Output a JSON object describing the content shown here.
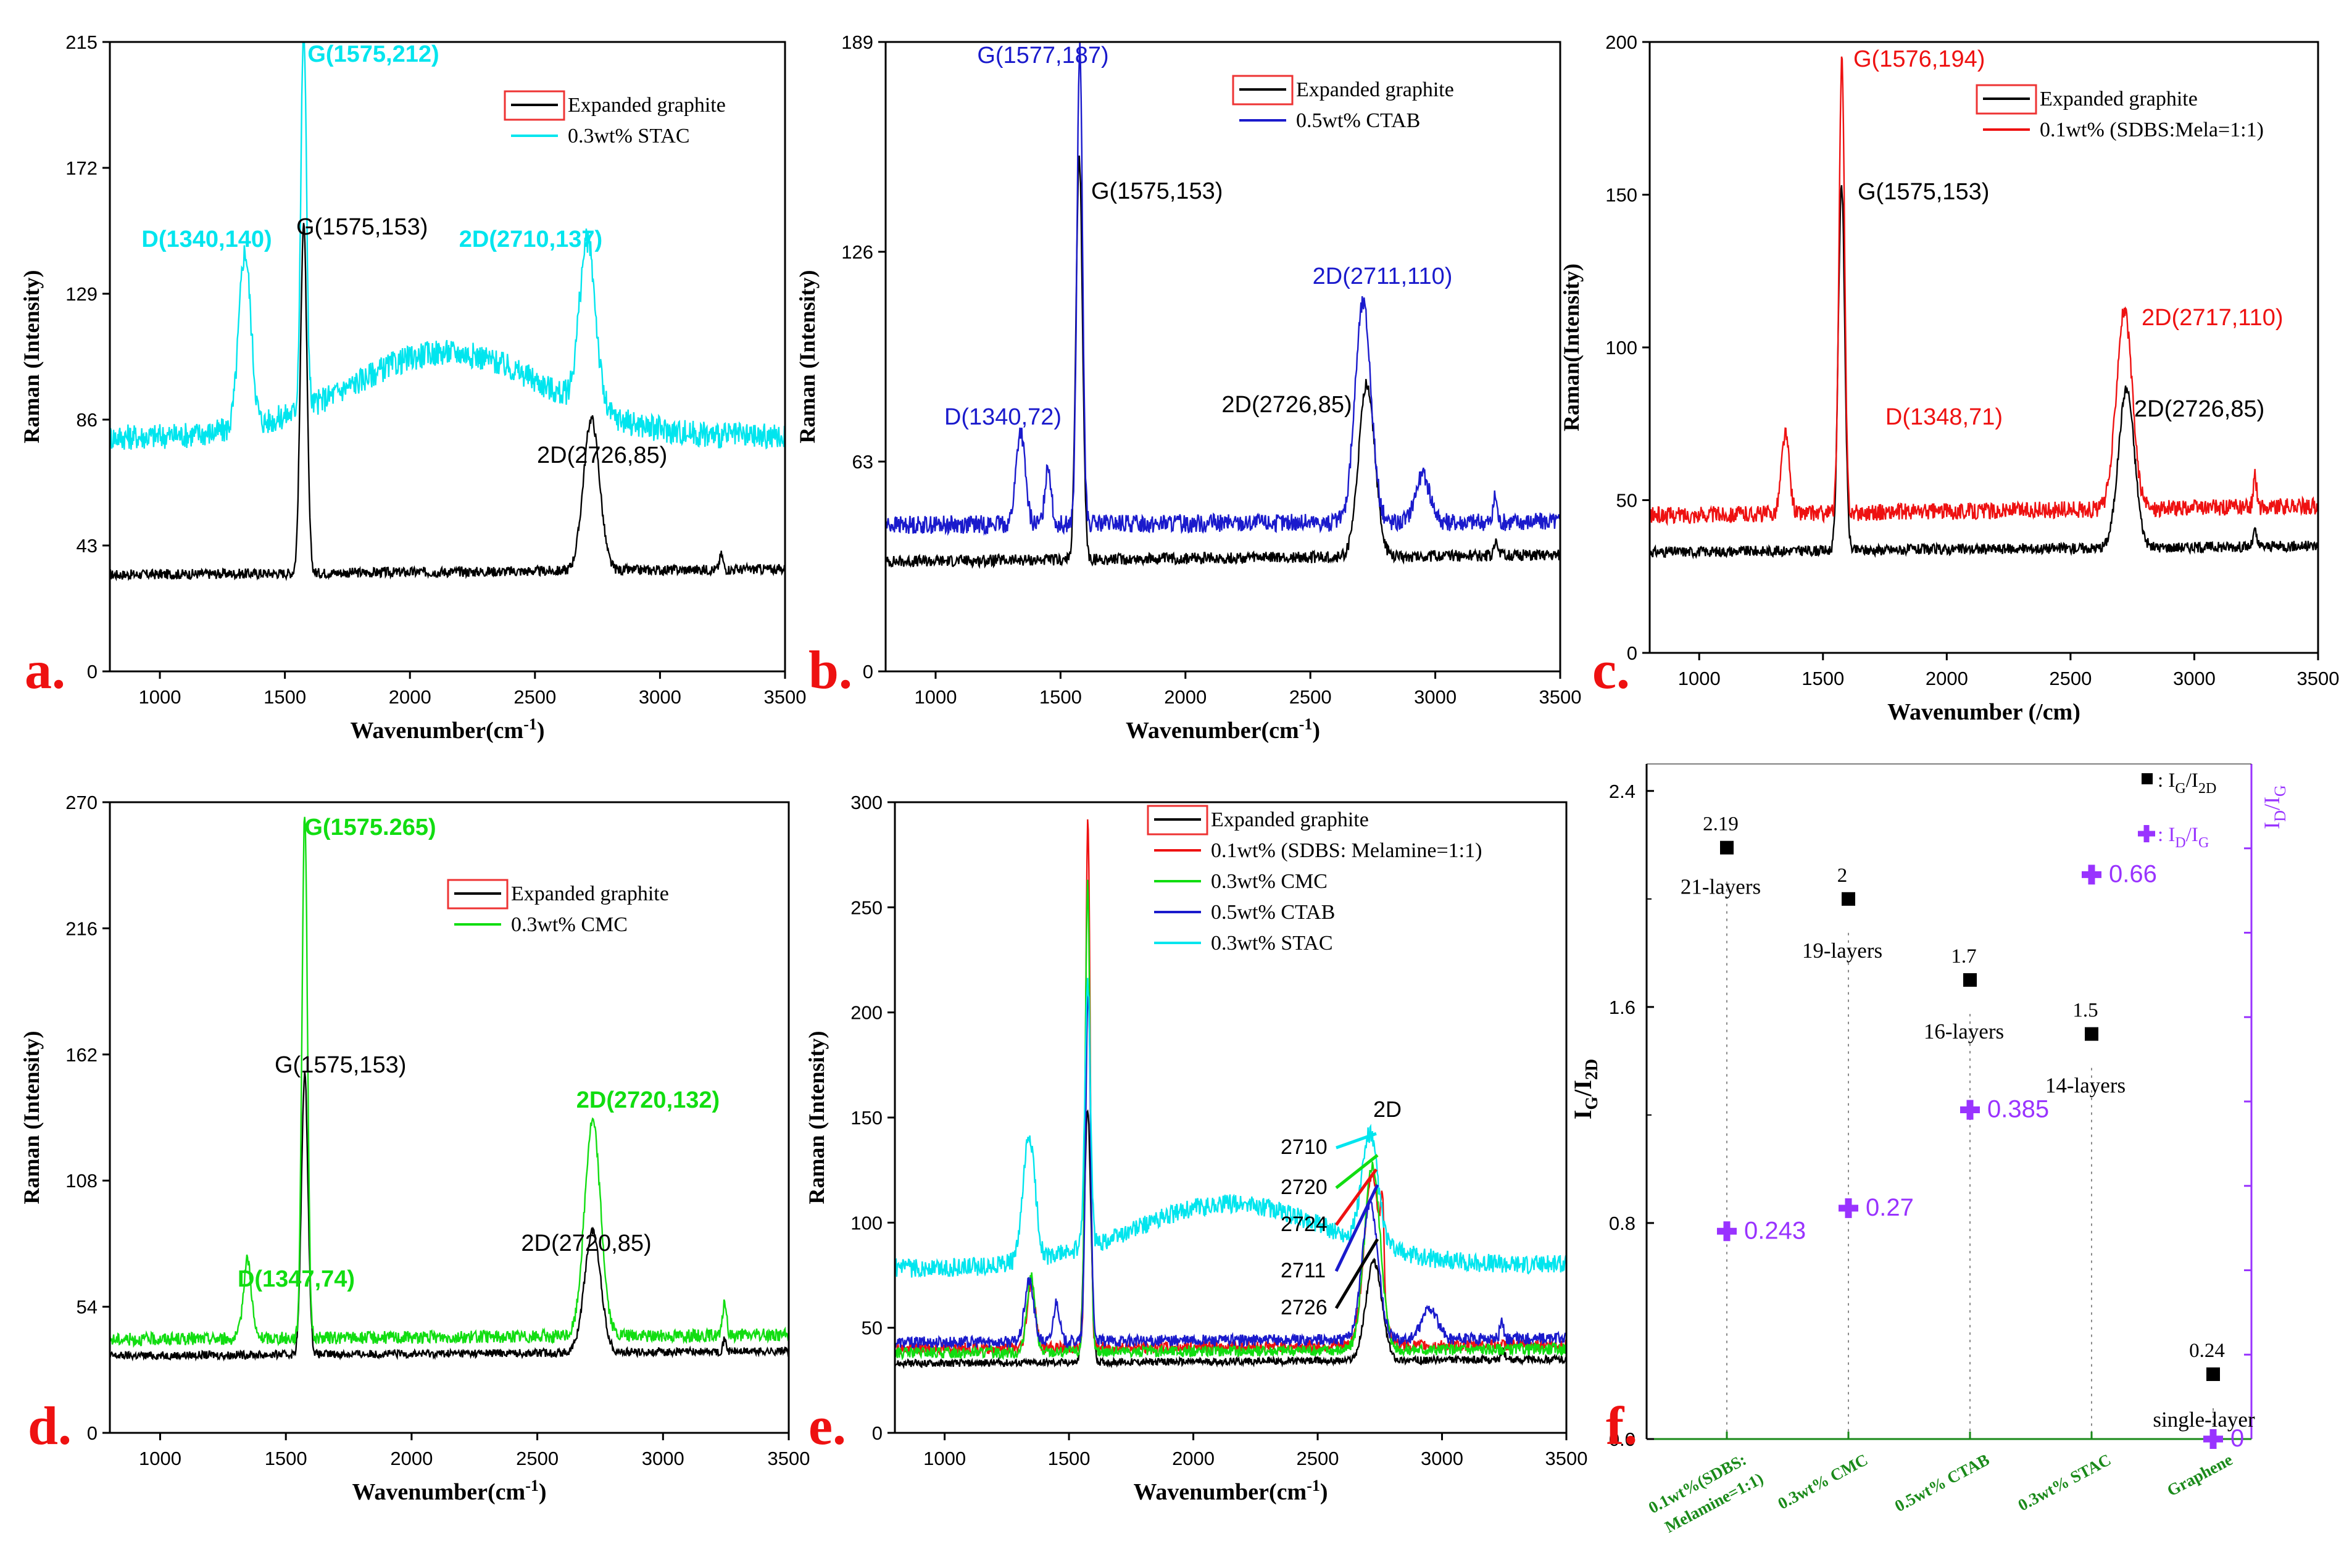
{
  "colors": {
    "black": "#000000",
    "cyan": "#00e5ee",
    "blue": "#1a1acc",
    "red": "#ee1111",
    "green": "#11dd11",
    "purple": "#9933ff",
    "axisgreen": "#1a8a1a"
  },
  "chart_data": [
    {
      "type": "line",
      "panel": "a.",
      "xlabel": "Wavenumber(cm",
      "xlabel_sup": "-1",
      "xlabel_end": ")",
      "ylabel": "Raman (Intensity)",
      "xlim": [
        800,
        3500
      ],
      "ylim": [
        0,
        215
      ],
      "xticks": [
        1000,
        1500,
        2000,
        2500,
        3000,
        3500
      ],
      "yticks": [
        0,
        43,
        86,
        129,
        172,
        215
      ],
      "series": [
        {
          "name": "Expanded graphite",
          "color": "#000000",
          "peaks": [
            [
              1575,
              153,
              13
            ],
            [
              2726,
              85,
              32
            ],
            [
              3245,
              38,
              7
            ]
          ],
          "base": [
            33,
            35
          ]
        },
        {
          "name": "0.3wt% STAC",
          "color": "#00e5ee",
          "peaks": [
            [
              1340,
              140,
              24
            ],
            [
              1575,
              212,
              11
            ],
            [
              2710,
              137,
              32
            ],
            [
              2150,
              109,
              390
            ]
          ],
          "base": [
            80,
            80
          ]
        }
      ],
      "annotations": [
        {
          "text": "G(1575,212)",
          "color": "#00e5ee",
          "x": 1575,
          "y": 212,
          "bold": true
        },
        {
          "text": "D(1340,140)",
          "color": "#00e5ee",
          "x": 1340,
          "y": 140,
          "bold": true
        },
        {
          "text": "G(1575,153)",
          "color": "#000000",
          "x": 1575,
          "y": 153
        },
        {
          "text": "2D(2710,137)",
          "color": "#00e5ee",
          "x": 2710,
          "y": 137,
          "bold": true
        },
        {
          "text": "2D(2726,85)",
          "color": "#000000",
          "x": 2726,
          "y": 85
        }
      ]
    },
    {
      "type": "line",
      "panel": "b.",
      "xlabel": "Wavenumber(cm",
      "xlabel_sup": "-1",
      "xlabel_end": ")",
      "ylabel": "Raman (Intensity)",
      "xlim": [
        800,
        3500
      ],
      "ylim": [
        0,
        189
      ],
      "xticks": [
        1000,
        1500,
        2000,
        2500,
        3000,
        3500
      ],
      "yticks": [
        0,
        63,
        126,
        189
      ],
      "series": [
        {
          "name": "Expanded graphite",
          "color": "#000000",
          "peaks": [
            [
              1575,
              153,
              13
            ],
            [
              2726,
              85,
              32
            ],
            [
              3245,
              38,
              7
            ]
          ],
          "base": [
            33,
            35
          ]
        },
        {
          "name": "0.5wt% CTAB",
          "color": "#1a1acc",
          "peaks": [
            [
              1340,
              72,
              18
            ],
            [
              1450,
              62,
              12
            ],
            [
              1577,
              187,
              11
            ],
            [
              2711,
              110,
              32
            ],
            [
              2950,
              58,
              30
            ],
            [
              3240,
              52,
              7
            ]
          ],
          "base": [
            44,
            45
          ]
        }
      ],
      "annotations": [
        {
          "text": "G(1577,187)",
          "color": "#1a1acc",
          "x": 1577,
          "y": 187
        },
        {
          "text": "G(1575,153)",
          "color": "#000000",
          "x": 1575,
          "y": 153
        },
        {
          "text": "D(1340,72)",
          "color": "#1a1acc",
          "x": 1340,
          "y": 72
        },
        {
          "text": "2D(2711,110)",
          "color": "#1a1acc",
          "x": 2711,
          "y": 110
        },
        {
          "text": "2D(2726,85)",
          "color": "#000000",
          "x": 2726,
          "y": 85
        }
      ]
    },
    {
      "type": "line",
      "panel": "c.",
      "xlabel": "Wavenumber (/cm)",
      "xlabel_sup": "",
      "xlabel_end": "",
      "ylabel": "Raman(Intensity)",
      "xlim": [
        800,
        3500
      ],
      "ylim": [
        0,
        200
      ],
      "xticks": [
        1000,
        1500,
        2000,
        2500,
        3000,
        3500
      ],
      "yticks": [
        0,
        50,
        100,
        150,
        200
      ],
      "series": [
        {
          "name": "Expanded graphite",
          "color": "#000000",
          "peaks": [
            [
              1575,
              153,
              13
            ],
            [
              2726,
              85,
              32
            ],
            [
              3245,
              38,
              7
            ]
          ],
          "base": [
            33,
            35
          ]
        },
        {
          "name": "0.1wt% (SDBS:Mela=1:1)",
          "color": "#ee1111",
          "peaks": [
            [
              1348,
              71,
              16
            ],
            [
              1576,
              194,
              11
            ],
            [
              2717,
              110,
              32
            ],
            [
              3245,
              55,
              7
            ]
          ],
          "base": [
            45,
            48
          ]
        }
      ],
      "annotations": [
        {
          "text": "G(1576,194)",
          "color": "#ee1111",
          "x": 1576,
          "y": 194
        },
        {
          "text": "G(1575,153)",
          "color": "#000000",
          "x": 1575,
          "y": 153
        },
        {
          "text": "2D(2717,110)",
          "color": "#ee1111",
          "x": 2717,
          "y": 110
        },
        {
          "text": "D(1348,71)",
          "color": "#ee1111",
          "x": 1348,
          "y": 71
        },
        {
          "text": "2D(2726,85)",
          "color": "#000000",
          "x": 2726,
          "y": 85
        }
      ]
    },
    {
      "type": "line",
      "panel": "d.",
      "xlabel": "Wavenumber(cm",
      "xlabel_sup": "-1",
      "xlabel_end": ")",
      "ylabel": "Raman (Intensity)",
      "xlim": [
        800,
        3500
      ],
      "ylim": [
        0,
        270
      ],
      "xticks": [
        1000,
        1500,
        2000,
        2500,
        3000,
        3500
      ],
      "yticks": [
        0,
        54,
        108,
        162,
        216,
        270
      ],
      "series": [
        {
          "name": "Expanded graphite",
          "color": "#000000",
          "peaks": [
            [
              1575,
              153,
              13
            ],
            [
              2720,
              85,
              32
            ],
            [
              3245,
              38,
              7
            ]
          ],
          "base": [
            33,
            35
          ]
        },
        {
          "name": "0.3wt% CMC",
          "color": "#11dd11",
          "peaks": [
            [
              1347,
              74,
              16
            ],
            [
              1575,
              265,
              11
            ],
            [
              2720,
              132,
              32
            ],
            [
              3245,
              55,
              7
            ]
          ],
          "base": [
            40,
            42
          ]
        }
      ],
      "annotations": [
        {
          "text": "G(1575.265)",
          "color": "#11dd11",
          "x": 1575,
          "y": 265,
          "bold": true
        },
        {
          "text": "G(1575,153)",
          "color": "#000000",
          "x": 1575,
          "y": 153
        },
        {
          "text": "2D(2720,132)",
          "color": "#11dd11",
          "x": 2720,
          "y": 132,
          "bold": true
        },
        {
          "text": "D(1347,74)",
          "color": "#11dd11",
          "x": 1347,
          "y": 74,
          "bold": true
        },
        {
          "text": "2D(2720,85)",
          "color": "#000000",
          "x": 2720,
          "y": 85
        }
      ]
    },
    {
      "type": "line",
      "panel": "e.",
      "xlabel": "Wavenumber(cm",
      "xlabel_sup": "-1",
      "xlabel_end": ")",
      "ylabel": "Raman (Intensity)",
      "xlim": [
        800,
        3500
      ],
      "ylim": [
        0,
        300
      ],
      "xticks": [
        1000,
        1500,
        2000,
        2500,
        3000,
        3500
      ],
      "yticks": [
        0,
        50,
        100,
        150,
        200,
        250,
        300
      ],
      "series": [
        {
          "name": "Expanded graphite",
          "color": "#000000",
          "peaks": [
            [
              1575,
              153,
              13
            ],
            [
              2726,
              80,
              32
            ],
            [
              3245,
              38,
              7
            ]
          ],
          "base": [
            33,
            35
          ]
        },
        {
          "name": "0.1wt% (SDBS: Melamine=1:1)",
          "color": "#ee1111",
          "peaks": [
            [
              1348,
              71,
              16
            ],
            [
              1576,
              292,
              9
            ],
            [
              2720,
              122,
              32
            ],
            [
              2760,
              77,
              6
            ]
          ],
          "base": [
            40,
            42
          ]
        },
        {
          "name": "0.3wt% CMC",
          "color": "#11dd11",
          "peaks": [
            [
              1347,
              74,
              16
            ],
            [
              1575,
              260,
              10
            ],
            [
              2720,
              126,
              32
            ]
          ],
          "base": [
            38,
            40
          ]
        },
        {
          "name": "0.5wt% CTAB",
          "color": "#1a1acc",
          "peaks": [
            [
              1340,
              72,
              18
            ],
            [
              1450,
              62,
              12
            ],
            [
              1577,
              210,
              10
            ],
            [
              2711,
              108,
              32
            ],
            [
              2950,
              58,
              30
            ],
            [
              3240,
              52,
              7
            ]
          ],
          "base": [
            43,
            45
          ]
        },
        {
          "name": "0.3wt% STAC",
          "color": "#00e5ee",
          "peaks": [
            [
              1340,
              137,
              24
            ],
            [
              1575,
              205,
              11
            ],
            [
              2710,
              130,
              32
            ],
            [
              2150,
              108,
              390
            ]
          ],
          "base": [
            78,
            80
          ]
        }
      ],
      "annotations": [
        {
          "text": "2D",
          "color": "#000000",
          "x": 2710,
          "y": 140
        },
        {
          "text": "2710",
          "color": "#000000"
        },
        {
          "text": "2720",
          "color": "#000000"
        },
        {
          "text": "2724",
          "color": "#000000"
        },
        {
          "text": "2711",
          "color": "#000000"
        },
        {
          "text": "2726",
          "color": "#000000"
        }
      ]
    },
    {
      "type": "scatter",
      "panel": "f.",
      "ylabel_left": "I",
      "ylabel_left_sub": "G",
      "ylabel_left_mid": "/I",
      "ylabel_left_sub2": "2D",
      "ylabel_right": "I",
      "ylabel_right_sub": "D",
      "ylabel_right_mid": "/I",
      "ylabel_right_sub2": "G",
      "ylim": [
        0,
        2.5
      ],
      "yticks": [
        0.0,
        0.8,
        1.6,
        2.4
      ],
      "categories": [
        "0.1wt%(SDBS:\nMelamine=1:1)",
        "0.3wt% CMC",
        "0.5wt% CTAB",
        "0.3wt% STAC",
        "Graphene"
      ],
      "series": [
        {
          "name": "IG/I2D",
          "color": "#000000",
          "marker": "square",
          "values": [
            2.19,
            2.0,
            1.7,
            1.5,
            0.24
          ],
          "labels": [
            "2.19",
            "2",
            "1.7",
            "1.5",
            "0.24"
          ],
          "layers": [
            "21-layers",
            "19-layers",
            "16-layers",
            "14-layers",
            "single-layer"
          ]
        },
        {
          "name": "ID/IG",
          "color": "#9933ff",
          "marker": "cross",
          "values": [
            0.243,
            0.27,
            0.385,
            0.66,
            0
          ],
          "labels": [
            "0.243",
            "0.27",
            "0.385",
            "0.66",
            "0"
          ]
        }
      ],
      "legend": [
        {
          "text": ": I",
          "sub": "G",
          "mid": "/I",
          "sub2": "2D"
        },
        {
          "text": ": I",
          "sub": "D",
          "mid": "/I",
          "sub2": "G"
        }
      ]
    }
  ]
}
